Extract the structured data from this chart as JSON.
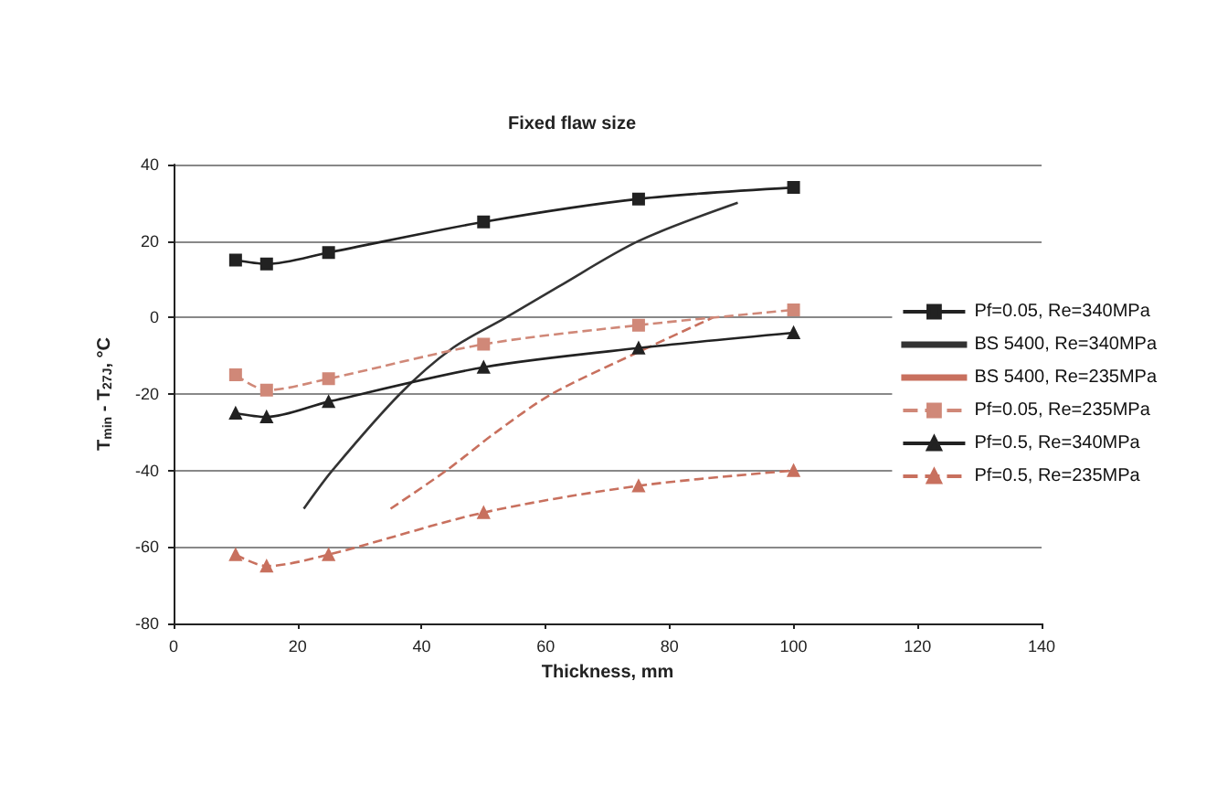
{
  "chart_data": {
    "type": "line",
    "title": "Fixed flaw size",
    "xlabel": "Thickness, mm",
    "ylabel": "T$_{min}$ - T$_{27J}$, °C",
    "xlim": [
      0,
      140
    ],
    "xticks": [
      0,
      20,
      40,
      60,
      80,
      100,
      120,
      140
    ],
    "ylim": [
      -80,
      40
    ],
    "yticks": [
      -80,
      -60,
      -40,
      -20,
      0,
      20,
      40
    ],
    "grid": "y",
    "legend": "right",
    "series": [
      {
        "name": "Pf=0.05, Re=340MPa",
        "color": "#222222",
        "marker": "square",
        "line_style": "solid",
        "x": [
          10,
          15,
          25,
          50,
          75,
          100
        ],
        "values": [
          15,
          14,
          17,
          25,
          31,
          34
        ]
      },
      {
        "name": "BS 5400, Re=340MPa",
        "color": "#333333",
        "marker": "none",
        "line_style": "solid",
        "x": [
          21,
          25.6,
          36.5,
          45,
          53.6,
          62,
          75,
          91
        ],
        "values": [
          -50,
          -40,
          -20,
          -8,
          0,
          8,
          20,
          30
        ]
      },
      {
        "name": "BS 5400, Re=235MPa",
        "color": "#c8705e",
        "marker": "none",
        "line_style": "dashed",
        "x": [
          35,
          44,
          52,
          61,
          75,
          87
        ],
        "values": [
          -50,
          -40,
          -30,
          -20,
          -9,
          0
        ]
      },
      {
        "name": "Pf=0.05, Re=235MPa",
        "color": "#d08878",
        "marker": "square",
        "line_style": "dashed",
        "x": [
          10,
          15,
          25,
          50,
          75,
          100
        ],
        "values": [
          -15,
          -19,
          -16,
          -7,
          -2,
          2
        ]
      },
      {
        "name": "Pf=0.5, Re=340MPa",
        "color": "#222222",
        "marker": "triangle",
        "line_style": "solid",
        "x": [
          10,
          15,
          25,
          50,
          75,
          100
        ],
        "values": [
          -25,
          -26,
          -22,
          -13,
          -8,
          -4
        ]
      },
      {
        "name": "Pf=0.5, Re=235MPa",
        "color": "#c8705e",
        "marker": "triangle",
        "line_style": "dashed",
        "x": [
          10,
          15,
          25,
          50,
          75,
          100
        ],
        "values": [
          -62,
          -65,
          -62,
          -51,
          -44,
          -40
        ]
      }
    ]
  }
}
